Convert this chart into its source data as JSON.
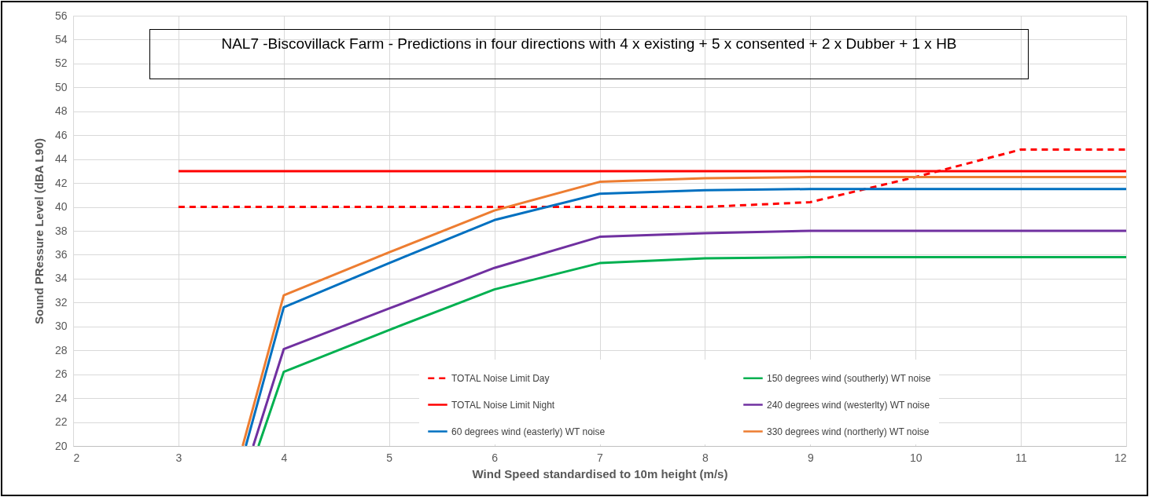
{
  "chart_data": {
    "type": "line",
    "title": "NAL7 -Biscovillack Farm  -  Predictions in four directions with 4 x existing + 5 x consented + 2 x Dubber + 1 x HB",
    "xlabel": "Wind Speed  standardised to 10m height (m/s)",
    "ylabel": "Sound PRessure Level (dBA L90)",
    "x": [
      3,
      4,
      5,
      6,
      7,
      8,
      9,
      10,
      11,
      12
    ],
    "series": [
      {
        "name": "TOTAL Noise Limit Day",
        "color": "#ff0000",
        "line_style": "dashed",
        "values": [
          40,
          40,
          40,
          40,
          40,
          40,
          40.4,
          42.5,
          44.8,
          44.8
        ]
      },
      {
        "name": "TOTAL Noise Limit Night",
        "color": "#ff0000",
        "line_style": "solid",
        "values": [
          43,
          43,
          43,
          43,
          43,
          43,
          43,
          43,
          43,
          43
        ]
      },
      {
        "name": "60 degrees wind (easterly) WT noise",
        "color": "#0070c0",
        "line_style": "solid",
        "x": [
          3.64,
          4,
          5,
          6,
          7,
          8,
          9,
          10,
          11,
          12
        ],
        "values": [
          20,
          31.6,
          35.3,
          38.9,
          41.1,
          41.4,
          41.5,
          41.5,
          41.5,
          41.5
        ]
      },
      {
        "name": "150 degrees wind (southerly) WT noise",
        "color": "#00b050",
        "line_style": "solid",
        "x": [
          3.76,
          4,
          5,
          6,
          7,
          8,
          9,
          10,
          11,
          12
        ],
        "values": [
          20,
          26.2,
          29.7,
          33.1,
          35.3,
          35.7,
          35.8,
          35.8,
          35.8,
          35.8
        ]
      },
      {
        "name": "240 degrees wind (westerlty) WT noise",
        "color": "#7030a0",
        "line_style": "solid",
        "x": [
          3.71,
          4,
          5,
          6,
          7,
          8,
          9,
          10,
          11,
          12
        ],
        "values": [
          20,
          28.1,
          31.5,
          34.9,
          37.5,
          37.8,
          38,
          38,
          38,
          38
        ]
      },
      {
        "name": "330 degrees wind (northerly) WT noise",
        "color": "#ed7d31",
        "line_style": "solid",
        "x": [
          3.61,
          4,
          5,
          6,
          7,
          8,
          9,
          10,
          11,
          12
        ],
        "values": [
          20,
          32.6,
          36.2,
          39.7,
          42.1,
          42.4,
          42.5,
          42.5,
          42.5,
          42.5
        ]
      }
    ],
    "xlim": [
      2,
      12
    ],
    "xticks": [
      2,
      3,
      4,
      5,
      6,
      7,
      8,
      9,
      10,
      11,
      12
    ],
    "ylim": [
      20,
      56
    ],
    "yticks": [
      20,
      22,
      24,
      26,
      28,
      30,
      32,
      34,
      36,
      38,
      40,
      42,
      44,
      46,
      48,
      50,
      52,
      54,
      56
    ],
    "grid": true,
    "legend": "bottom right",
    "marker": "none"
  }
}
